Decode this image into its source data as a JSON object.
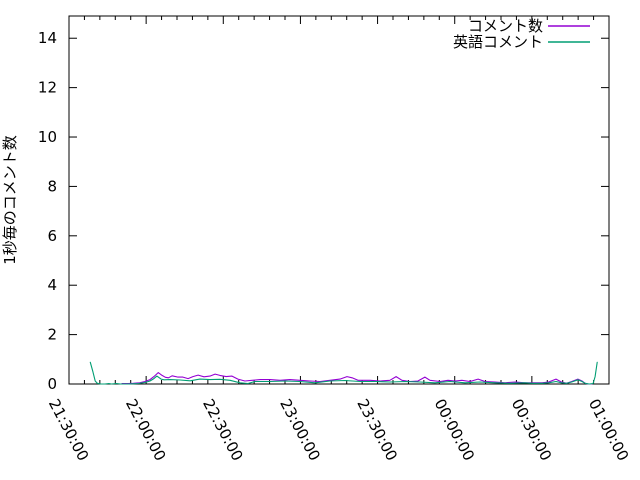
{
  "figure": {
    "background": "#ffffff",
    "axis_color": "#000000",
    "text_color": "#000000"
  },
  "chart_data": {
    "type": "line",
    "title": "",
    "xlabel": "",
    "ylabel": "1秒毎のコメント数",
    "x_unit": "minutes after 21:30:00",
    "xlim": [
      0,
      210
    ],
    "ylim": [
      0,
      14.9
    ],
    "y_ticks": [
      0,
      2,
      4,
      6,
      8,
      10,
      12,
      14
    ],
    "x_ticks": [
      {
        "t": 0,
        "label": "21:30:00"
      },
      {
        "t": 30,
        "label": "22:00:00"
      },
      {
        "t": 60,
        "label": "22:30:00"
      },
      {
        "t": 90,
        "label": "23:00:00"
      },
      {
        "t": 120,
        "label": "23:30:00"
      },
      {
        "t": 150,
        "label": "00:00:00"
      },
      {
        "t": 180,
        "label": "00:30:00"
      },
      {
        "t": 210,
        "label": "01:00:00"
      }
    ],
    "x_minor_tick_step": 6,
    "grid": false,
    "legend_position": "top-right-inside",
    "series": [
      {
        "name": "コメント数",
        "color": "#9400d3",
        "points": [
          [
            20.6,
            0.02
          ],
          [
            23,
            0.02
          ],
          [
            25,
            0.03
          ],
          [
            27.5,
            0.05
          ],
          [
            29.5,
            0.1
          ],
          [
            31.5,
            0.18
          ],
          [
            33,
            0.3
          ],
          [
            34.7,
            0.46
          ],
          [
            36.2,
            0.35
          ],
          [
            37.5,
            0.27
          ],
          [
            38.7,
            0.25
          ],
          [
            40.1,
            0.33
          ],
          [
            42.4,
            0.28
          ],
          [
            44.3,
            0.28
          ],
          [
            46.3,
            0.22
          ],
          [
            48.2,
            0.3
          ],
          [
            50.2,
            0.36
          ],
          [
            52.5,
            0.29
          ],
          [
            54.8,
            0.32
          ],
          [
            56.8,
            0.4
          ],
          [
            58.7,
            0.35
          ],
          [
            61.1,
            0.3
          ],
          [
            63.4,
            0.32
          ],
          [
            65.7,
            0.2
          ],
          [
            68.4,
            0.12
          ],
          [
            71.2,
            0.15
          ],
          [
            74.3,
            0.18
          ],
          [
            78.2,
            0.18
          ],
          [
            82.1,
            0.15
          ],
          [
            85.9,
            0.18
          ],
          [
            89.8,
            0.15
          ],
          [
            93.7,
            0.12
          ],
          [
            97.6,
            0.1
          ],
          [
            101.5,
            0.15
          ],
          [
            105.4,
            0.2
          ],
          [
            108.1,
            0.3
          ],
          [
            110.1,
            0.25
          ],
          [
            112.4,
            0.15
          ],
          [
            117.1,
            0.15
          ],
          [
            121,
            0.12
          ],
          [
            124.8,
            0.15
          ],
          [
            127.2,
            0.3
          ],
          [
            129.5,
            0.15
          ],
          [
            132.6,
            0.1
          ],
          [
            135.7,
            0.12
          ],
          [
            138.4,
            0.28
          ],
          [
            140.4,
            0.15
          ],
          [
            144.3,
            0.1
          ],
          [
            147.4,
            0.15
          ],
          [
            150.1,
            0.12
          ],
          [
            152.8,
            0.15
          ],
          [
            155.9,
            0.1
          ],
          [
            159.1,
            0.2
          ],
          [
            161.8,
            0.1
          ],
          [
            165.7,
            0.08
          ],
          [
            169.6,
            0.05
          ],
          [
            173.5,
            0.08
          ],
          [
            177.3,
            0.05
          ],
          [
            180,
            0.05
          ],
          [
            184,
            0.05
          ],
          [
            186.5,
            0.08
          ],
          [
            189.4,
            0.2
          ],
          [
            191.5,
            0.08
          ],
          [
            193.5,
            0.03
          ],
          [
            195.5,
            0.1
          ],
          [
            197.9,
            0.2
          ],
          [
            199.5,
            0.12
          ],
          [
            200.7,
            0.03
          ],
          [
            202,
            0
          ],
          [
            203.4,
            0
          ]
        ]
      },
      {
        "name": "英語コメント",
        "color": "#009e73",
        "points": [
          [
            8.3,
            0.88
          ],
          [
            9.3,
            0.5
          ],
          [
            10.2,
            0.12
          ],
          [
            11,
            0.03
          ],
          [
            12.4,
            0
          ],
          [
            14,
            0
          ],
          [
            15.5,
            0.02
          ],
          [
            16.5,
            0
          ],
          [
            18.5,
            0.02
          ],
          [
            20,
            0
          ],
          [
            23,
            0
          ],
          [
            25,
            0.01
          ],
          [
            27,
            0.02
          ],
          [
            29.5,
            0.06
          ],
          [
            31.5,
            0.12
          ],
          [
            33,
            0.22
          ],
          [
            34.2,
            0.32
          ],
          [
            35.8,
            0.2
          ],
          [
            37,
            0.17
          ],
          [
            39.3,
            0.18
          ],
          [
            43.2,
            0.16
          ],
          [
            47.1,
            0.13
          ],
          [
            50.9,
            0.2
          ],
          [
            54.8,
            0.18
          ],
          [
            58.7,
            0.19
          ],
          [
            62.6,
            0.15
          ],
          [
            66.5,
            0.05
          ],
          [
            69.6,
            0.02
          ],
          [
            72.3,
            0.1
          ],
          [
            78.2,
            0.1
          ],
          [
            84,
            0.12
          ],
          [
            89.8,
            0.1
          ],
          [
            95.7,
            0.05
          ],
          [
            101.5,
            0.12
          ],
          [
            107.3,
            0.14
          ],
          [
            113.2,
            0.1
          ],
          [
            119,
            0.1
          ],
          [
            124.8,
            0.08
          ],
          [
            130.7,
            0.1
          ],
          [
            136.5,
            0.08
          ],
          [
            142.3,
            0.05
          ],
          [
            148.2,
            0.1
          ],
          [
            154,
            0.05
          ],
          [
            159.8,
            0.08
          ],
          [
            165.7,
            0.05
          ],
          [
            171.5,
            0.03
          ],
          [
            177.3,
            0.05
          ],
          [
            180,
            0.03
          ],
          [
            184,
            0.03
          ],
          [
            186.5,
            0.05
          ],
          [
            189.4,
            0.1
          ],
          [
            191.5,
            0.05
          ],
          [
            193.5,
            0.03
          ],
          [
            195.5,
            0.08
          ],
          [
            197.9,
            0.17
          ],
          [
            199.5,
            0.1
          ],
          [
            200.7,
            0.03
          ],
          [
            202.3,
            0
          ],
          [
            203.8,
            0.02
          ],
          [
            204.6,
            0.3
          ],
          [
            205.4,
            0.88
          ]
        ]
      }
    ]
  }
}
